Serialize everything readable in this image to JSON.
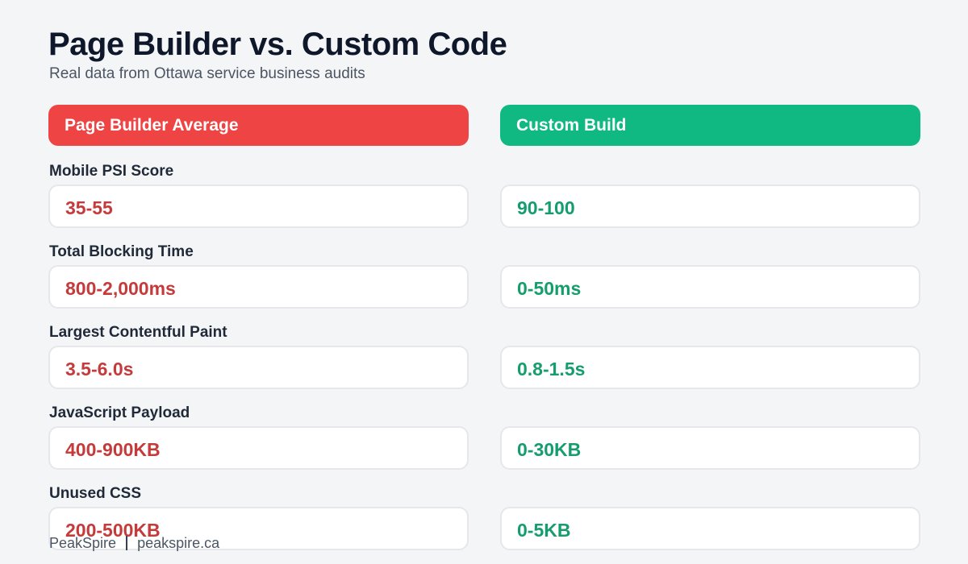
{
  "header": {
    "title": "Page Builder vs. Custom Code",
    "subtitle": "Real data from Ottawa service business audits"
  },
  "columns": {
    "left": {
      "label": "Page Builder Average",
      "color": "#ef4444",
      "value_color": "#c53a3a"
    },
    "right": {
      "label": "Custom Build",
      "color": "#10b981",
      "value_color": "#169d6e"
    }
  },
  "metrics": [
    {
      "label": "Mobile PSI Score",
      "page_builder": "35-55",
      "custom": "90-100"
    },
    {
      "label": "Total Blocking Time",
      "page_builder": "800-2,000ms",
      "custom": "0-50ms"
    },
    {
      "label": "Largest Contentful Paint",
      "page_builder": "3.5-6.0s",
      "custom": "0.8-1.5s"
    },
    {
      "label": "JavaScript Payload",
      "page_builder": "400-900KB",
      "custom": "0-30KB"
    },
    {
      "label": "Unused CSS",
      "page_builder": "200-500KB",
      "custom": "0-5KB"
    }
  ],
  "footer": {
    "brand": "PeakSpire",
    "url": "peakspire.ca"
  }
}
